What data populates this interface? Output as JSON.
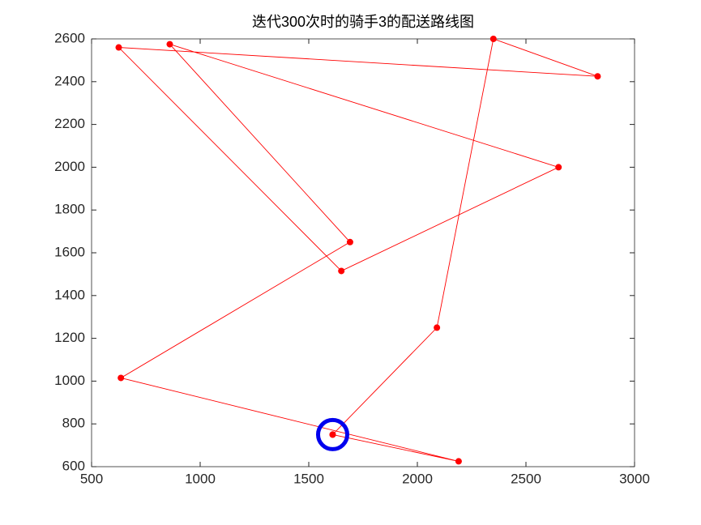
{
  "chart_data": {
    "type": "line",
    "title": "迭代300次时的骑手3的配送路线图",
    "x": [
      1610,
      2090,
      2350,
      2830,
      625,
      1650,
      2650,
      860,
      1690,
      635,
      2190,
      1610
    ],
    "series": [
      {
        "color": "#ff0000",
        "values": [
          750,
          1250,
          2600,
          2425,
          2560,
          1515,
          2000,
          2575,
          1650,
          1015,
          625,
          750
        ]
      }
    ],
    "start_marker_color": "#0000ee",
    "xlim": [
      500,
      3000
    ],
    "xticks": [
      500,
      1000,
      1500,
      2000,
      2500,
      3000
    ],
    "ylim": [
      600,
      2600
    ],
    "yticks": [
      600,
      800,
      1000,
      1200,
      1400,
      1600,
      1800,
      2000,
      2200,
      2400,
      2600
    ],
    "grid": false
  }
}
